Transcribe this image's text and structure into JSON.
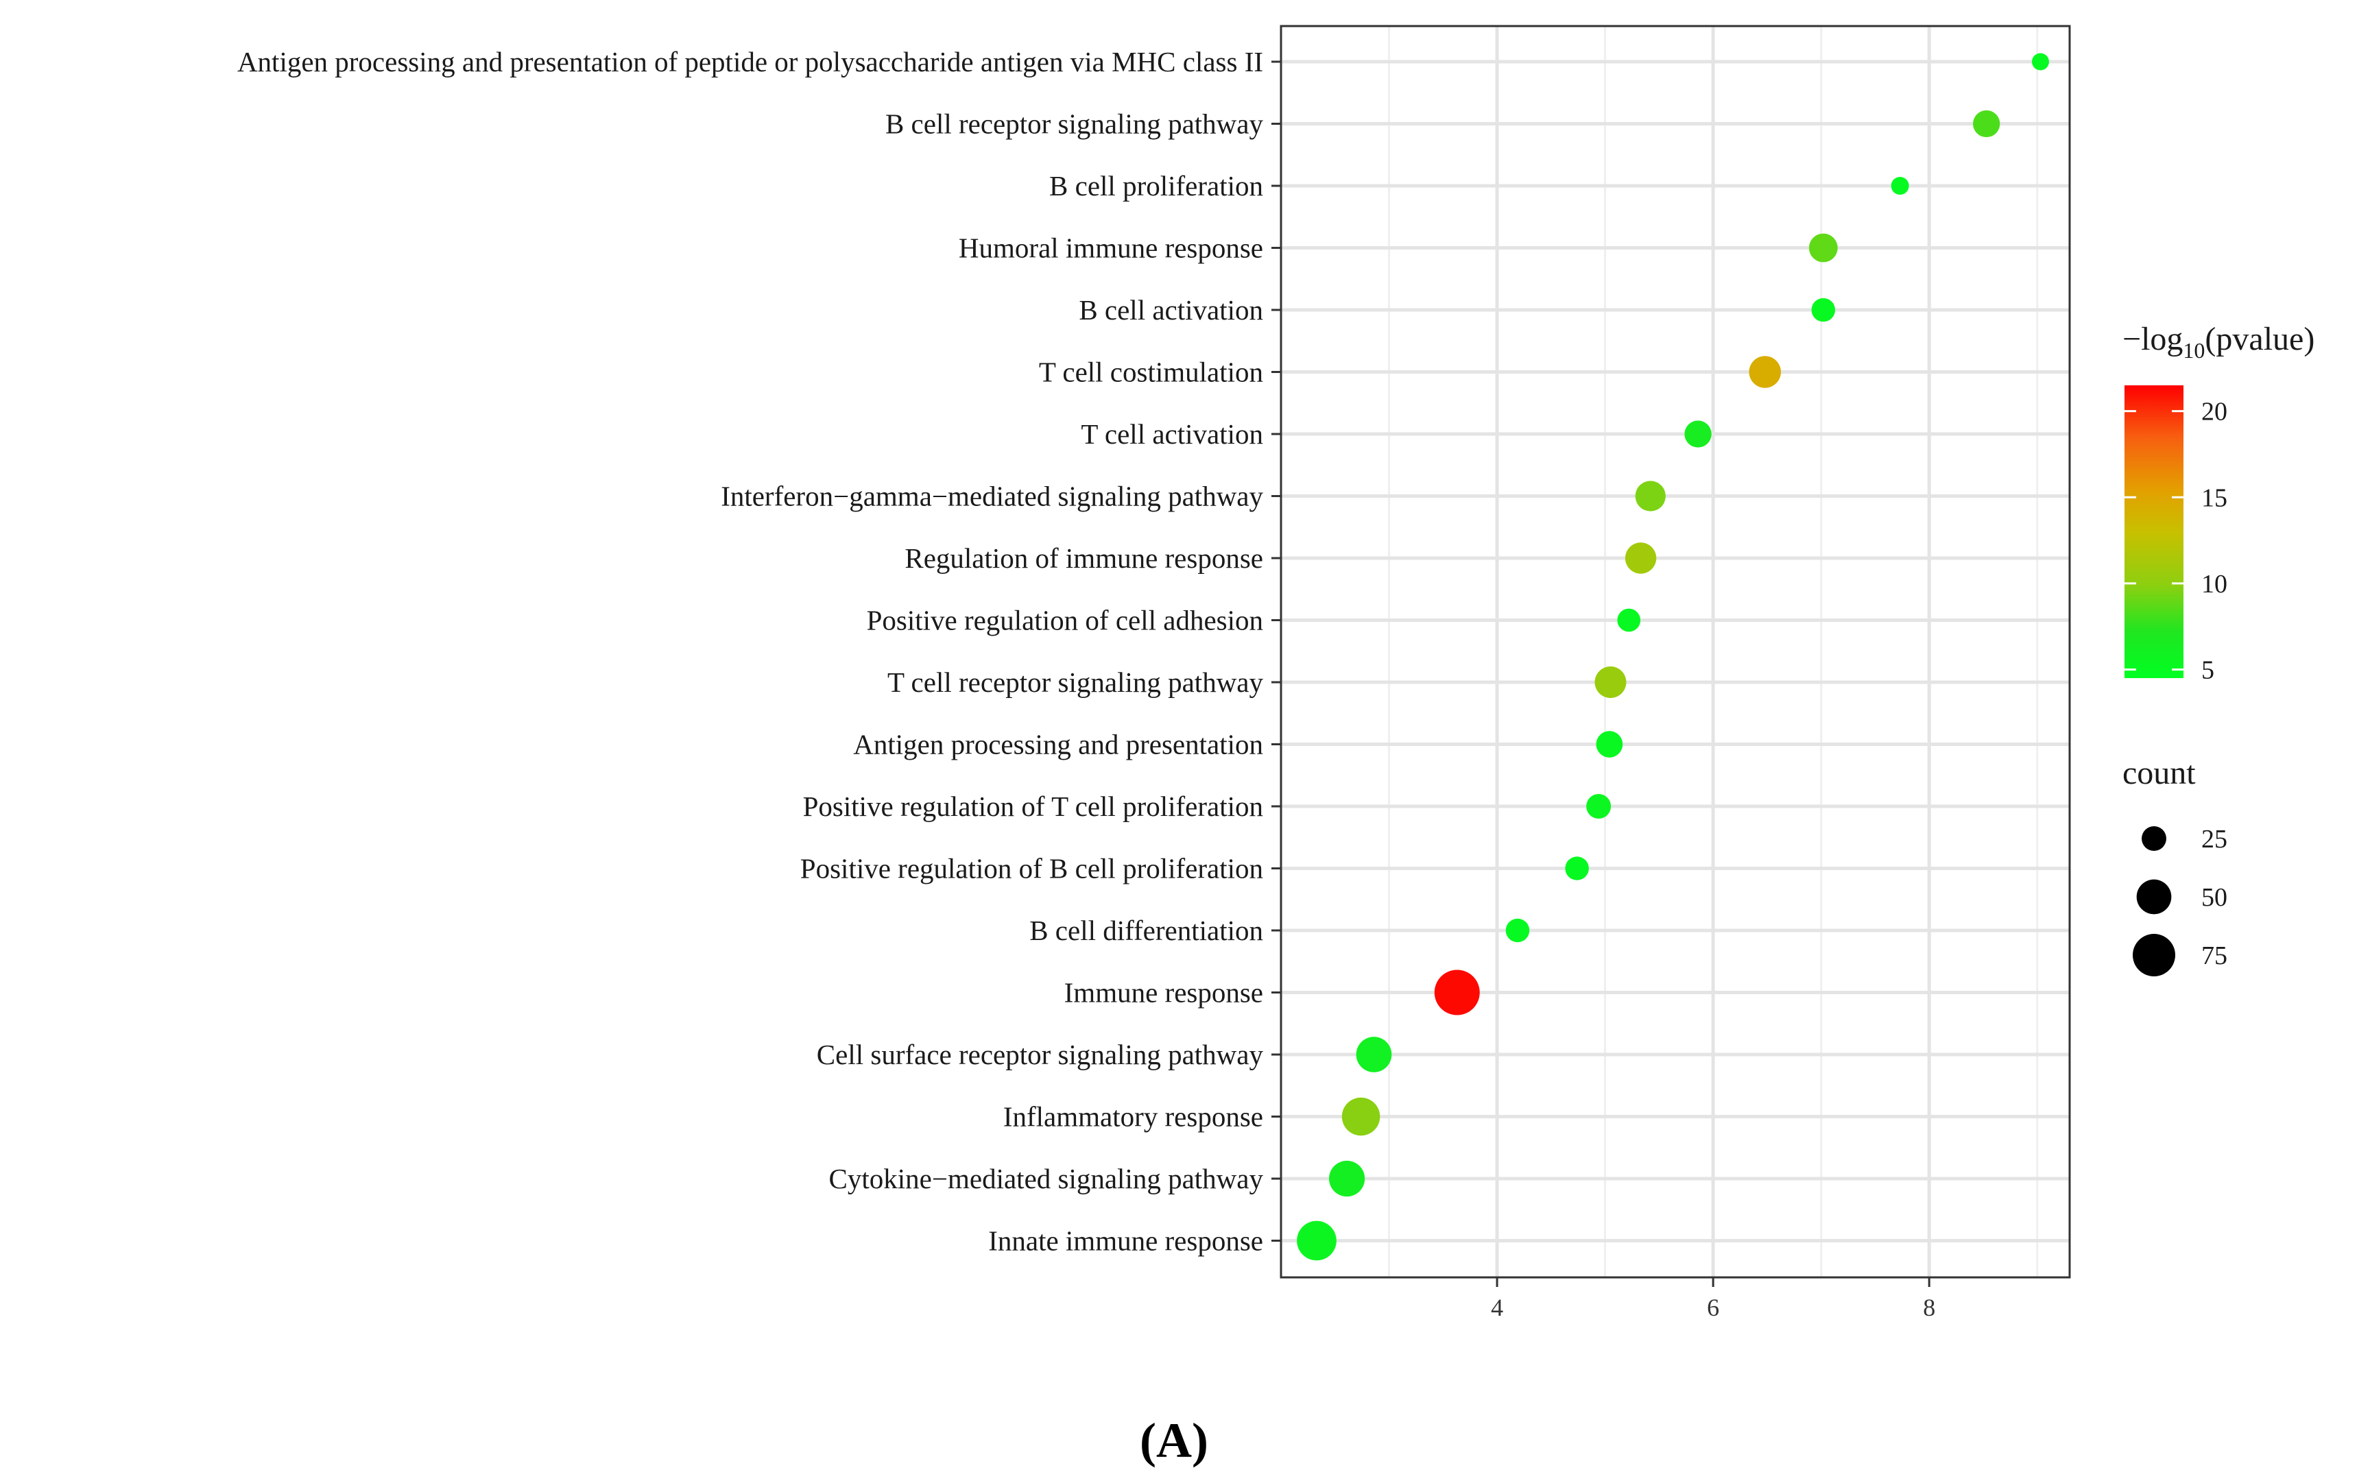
{
  "chart_data": {
    "type": "scatter",
    "title": "",
    "xlabel": "",
    "ylabel": "",
    "xlim": [
      2,
      9.3
    ],
    "xticks": [
      4,
      6,
      8
    ],
    "x_minor_gridlines": [
      3,
      5,
      7,
      9
    ],
    "grid": true,
    "categories": [
      "Antigen processing and presentation of peptide or polysaccharide antigen via MHC class II",
      "B cell receptor signaling pathway",
      "B cell proliferation",
      "Humoral immune response",
      "B cell activation",
      "T cell costimulation",
      "T cell activation",
      "Interferon−gamma−mediated signaling pathway",
      "Regulation of immune response",
      "Positive regulation of cell adhesion",
      "T cell receptor signaling pathway",
      "Antigen processing and presentation",
      "Positive regulation of T cell proliferation",
      "Positive regulation of B cell proliferation",
      "B cell differentiation",
      "Immune response",
      "Cell surface receptor signaling pathway",
      "Inflammatory response",
      "Cytokine−mediated signaling pathway",
      "Innate immune response"
    ],
    "points": [
      {
        "category": "Antigen processing and presentation of peptide or polysaccharide antigen via MHC class II",
        "x": 9.03,
        "count": 12,
        "neglog10p": 5.0
      },
      {
        "category": "B cell receptor signaling pathway",
        "x": 8.53,
        "count": 30,
        "neglog10p": 8.3
      },
      {
        "category": "B cell proliferation",
        "x": 7.73,
        "count": 13,
        "neglog10p": 5.0
      },
      {
        "category": "Humoral immune response",
        "x": 7.02,
        "count": 34,
        "neglog10p": 8.8
      },
      {
        "category": "B cell activation",
        "x": 7.02,
        "count": 23,
        "neglog10p": 5.2
      },
      {
        "category": "T cell costimulation",
        "x": 6.48,
        "count": 42,
        "neglog10p": 14.5
      },
      {
        "category": "T cell activation",
        "x": 5.86,
        "count": 30,
        "neglog10p": 6.5
      },
      {
        "category": "Interferon−gamma−mediated signaling pathway",
        "x": 5.42,
        "count": 38,
        "neglog10p": 9.5
      },
      {
        "category": "Regulation of immune response",
        "x": 5.33,
        "count": 40,
        "neglog10p": 11.0
      },
      {
        "category": "Positive regulation of cell adhesion",
        "x": 5.22,
        "count": 22,
        "neglog10p": 5.2
      },
      {
        "category": "T cell receptor signaling pathway",
        "x": 5.05,
        "count": 41,
        "neglog10p": 10.5
      },
      {
        "category": "Antigen processing and presentation",
        "x": 5.04,
        "count": 29,
        "neglog10p": 5.3
      },
      {
        "category": "Positive regulation of T cell proliferation",
        "x": 4.94,
        "count": 25,
        "neglog10p": 5.5
      },
      {
        "category": "Positive regulation of B cell proliferation",
        "x": 4.74,
        "count": 23,
        "neglog10p": 5.1
      },
      {
        "category": "B cell differentiation",
        "x": 4.19,
        "count": 23,
        "neglog10p": 5.0
      },
      {
        "category": "Immune response",
        "x": 3.63,
        "count": 85,
        "neglog10p": 21.2
      },
      {
        "category": "Cell surface receptor signaling pathway",
        "x": 2.86,
        "count": 52,
        "neglog10p": 6.0
      },
      {
        "category": "Inflammatory response",
        "x": 2.74,
        "count": 60,
        "neglog10p": 9.8
      },
      {
        "category": "Cytokine−mediated signaling pathway",
        "x": 2.61,
        "count": 53,
        "neglog10p": 6.2
      },
      {
        "category": "Innate immune response",
        "x": 2.33,
        "count": 65,
        "neglog10p": 5.6
      }
    ],
    "color_legend": {
      "title_main": "−log",
      "title_sub": "10",
      "title_rest": "(pvalue)",
      "min": 4.5,
      "max": 21.5,
      "ticks": [
        5,
        10,
        15,
        20
      ],
      "colors": [
        "#00ff22",
        "#e3a000",
        "#ff0000"
      ]
    },
    "size_legend": {
      "title": "count",
      "levels": [
        25,
        50,
        75
      ],
      "count_domain": [
        12,
        85
      ]
    },
    "legend_position": "right"
  },
  "figure_label": "(A)"
}
